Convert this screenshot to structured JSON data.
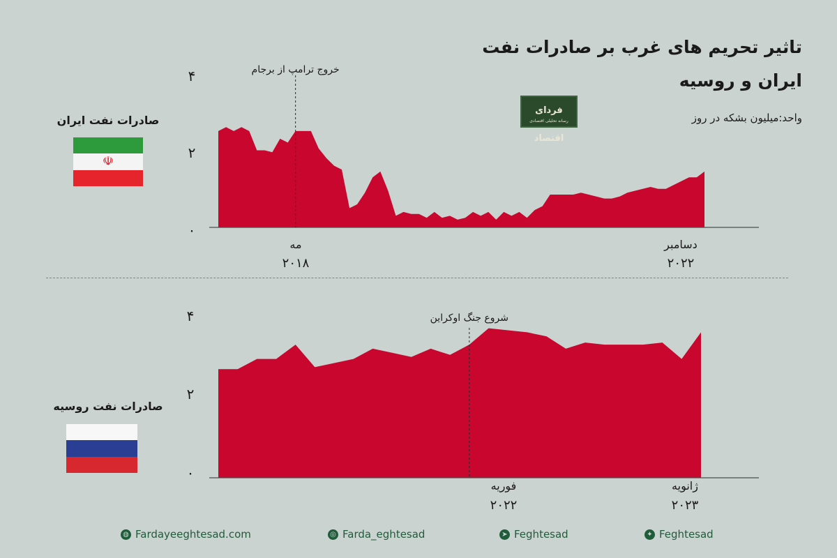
{
  "header": {
    "title_line1": "تاثیر تحریم های غرب بر صادرات نفت",
    "title_line2": "ایران و روسیه",
    "unit": "واحد:میلیون بشکه در روز",
    "logo_text": "فردای اقتصاد",
    "logo_subtext": "رسانه تحلیلی اقتصادی"
  },
  "colors": {
    "area_fill": "#c8062e",
    "background": "#cbd3d1",
    "text": "#1a1a1a",
    "footer_green": "#1f5c3a"
  },
  "chart_data": [
    {
      "type": "area",
      "country_label": "صادرات نفت ایران",
      "flag": "iran-flag",
      "ylim": [
        0,
        4
      ],
      "y_ticks": [
        "۰",
        "۲",
        "۴"
      ],
      "x_ticks": [
        {
          "label": "مه",
          "year": "۲۰۱۸"
        },
        {
          "label": "دسامبر",
          "year": "۲۰۲۲"
        }
      ],
      "annotation": "خروج ترامپ از برجام",
      "annotation_index": 10,
      "values": [
        2.5,
        2.6,
        2.5,
        2.6,
        2.5,
        2.0,
        2.0,
        1.95,
        2.3,
        2.2,
        2.5,
        2.5,
        2.5,
        2.05,
        1.8,
        1.6,
        1.5,
        0.5,
        0.6,
        0.9,
        1.3,
        1.45,
        0.95,
        0.3,
        0.4,
        0.35,
        0.35,
        0.25,
        0.4,
        0.25,
        0.3,
        0.2,
        0.25,
        0.4,
        0.3,
        0.4,
        0.2,
        0.4,
        0.3,
        0.4,
        0.25,
        0.45,
        0.55,
        0.85,
        0.85,
        0.85,
        0.85,
        0.9,
        0.85,
        0.8,
        0.75,
        0.75,
        0.8,
        0.9,
        0.95,
        1.0,
        1.05,
        1.0,
        1.0,
        1.1,
        1.2,
        1.3,
        1.3,
        1.45
      ]
    },
    {
      "type": "area",
      "country_label": "صادرات نفت روسیه",
      "flag": "russia-flag",
      "ylim": [
        0,
        4
      ],
      "y_ticks": [
        "۰",
        "۲",
        "۴"
      ],
      "x_ticks": [
        {
          "label": "فوریه",
          "year": "۲۰۲۲"
        },
        {
          "label": "ژانویه",
          "year": "۲۰۲۳"
        }
      ],
      "annotation": "شروع جنگ اوکراین",
      "annotation_index": 13,
      "values": [
        2.65,
        2.65,
        2.9,
        2.9,
        3.25,
        2.7,
        2.8,
        2.9,
        3.15,
        3.05,
        2.95,
        3.15,
        3.0,
        3.25,
        3.65,
        3.6,
        3.55,
        3.45,
        3.15,
        3.3,
        3.25,
        3.25,
        3.25,
        3.3,
        2.9,
        3.55
      ]
    }
  ],
  "footer": {
    "website": "Fardayeeghtesad.com",
    "instagram": "Farda_eghtesad",
    "telegram": "Feghtesad",
    "twitter": "Feghtesad"
  }
}
